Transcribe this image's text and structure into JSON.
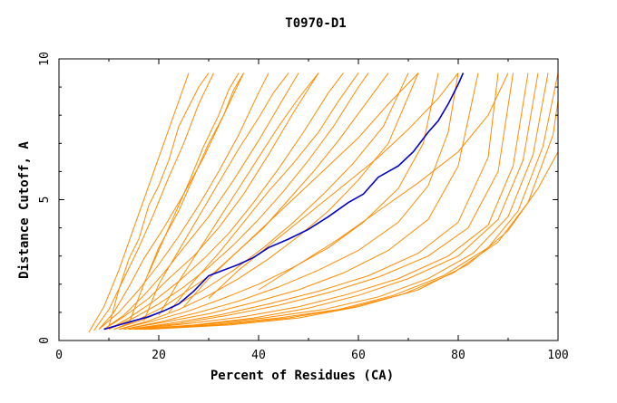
{
  "chart_data": {
    "type": "line",
    "title": "T0970-D1",
    "xlabel": "Percent of Residues (CA)",
    "ylabel": "Distance Cutoff, A",
    "xlim": [
      0,
      100
    ],
    "ylim": [
      0,
      10
    ],
    "x_ticks": [
      "0",
      "20",
      "40",
      "60",
      "80",
      "100"
    ],
    "y_ticks": [
      "0",
      "5",
      "10"
    ],
    "grid": false,
    "colors": {
      "highlight": "#0000cc",
      "others": "#ff8c00"
    },
    "highlight_series": {
      "name": "",
      "x": [
        9,
        12,
        15,
        18,
        21,
        24,
        27,
        30,
        33,
        36,
        39,
        42,
        46,
        50,
        54,
        58,
        61,
        64,
        68,
        71,
        74,
        76,
        78,
        80,
        81
      ],
      "y": [
        0.4,
        0.55,
        0.7,
        0.85,
        1.05,
        1.3,
        1.75,
        2.3,
        2.5,
        2.7,
        2.95,
        3.3,
        3.6,
        3.95,
        4.4,
        4.9,
        5.2,
        5.8,
        6.2,
        6.7,
        7.4,
        7.8,
        8.4,
        9.1,
        9.5
      ]
    },
    "orange_series_approx": [
      {
        "x": [
          6,
          9,
          12,
          15,
          18,
          22,
          25,
          26
        ],
        "y": [
          0.3,
          1.2,
          2.5,
          4.0,
          5.5,
          7.5,
          9.0,
          9.5
        ]
      },
      {
        "x": [
          7,
          10,
          13,
          16,
          19,
          22,
          25,
          28,
          31
        ],
        "y": [
          0.35,
          1.1,
          2.2,
          3.3,
          4.5,
          5.8,
          7.0,
          8.4,
          9.5
        ]
      },
      {
        "x": [
          8,
          11,
          14,
          17,
          21,
          25,
          29,
          33,
          37
        ],
        "y": [
          0.4,
          1.0,
          1.9,
          2.9,
          4.0,
          5.2,
          6.5,
          8.0,
          9.5
        ]
      },
      {
        "x": [
          8,
          12,
          16,
          20,
          24,
          28,
          32,
          36,
          40,
          42
        ],
        "y": [
          0.4,
          1.0,
          1.8,
          2.7,
          3.7,
          4.8,
          6.0,
          7.3,
          8.8,
          9.5
        ]
      },
      {
        "x": [
          9,
          13,
          17,
          21,
          25,
          30,
          35,
          40,
          45,
          48
        ],
        "y": [
          0.4,
          0.9,
          1.6,
          2.4,
          3.3,
          4.4,
          5.7,
          7.1,
          8.6,
          9.5
        ]
      },
      {
        "x": [
          9,
          13,
          18,
          22,
          27,
          32,
          37,
          42,
          47,
          52
        ],
        "y": [
          0.4,
          0.85,
          1.5,
          2.2,
          3.0,
          4.0,
          5.2,
          6.6,
          8.1,
          9.5
        ]
      },
      {
        "x": [
          10,
          14,
          19,
          24,
          29,
          34,
          39,
          44,
          49,
          54,
          57
        ],
        "y": [
          0.4,
          0.8,
          1.4,
          2.1,
          2.9,
          3.8,
          4.9,
          6.1,
          7.4,
          8.8,
          9.5
        ]
      },
      {
        "x": [
          10,
          15,
          20,
          25,
          30,
          35,
          40,
          45,
          50,
          55,
          60,
          62
        ],
        "y": [
          0.4,
          0.8,
          1.3,
          1.9,
          2.6,
          3.4,
          4.3,
          5.3,
          6.4,
          7.6,
          9.0,
          9.5
        ]
      },
      {
        "x": [
          11,
          16,
          21,
          26,
          31,
          36,
          41,
          46,
          51,
          56,
          61,
          66
        ],
        "y": [
          0.4,
          0.75,
          1.2,
          1.8,
          2.4,
          3.2,
          4.0,
          5.0,
          6.0,
          7.1,
          8.3,
          9.5
        ]
      },
      {
        "x": [
          11,
          17,
          23,
          29,
          35,
          41,
          47,
          53,
          59,
          65,
          70
        ],
        "y": [
          0.4,
          0.75,
          1.2,
          1.8,
          2.5,
          3.3,
          4.2,
          5.2,
          6.3,
          7.6,
          9.5
        ]
      },
      {
        "x": [
          12,
          18,
          24,
          30,
          36,
          42,
          48,
          54,
          60,
          66,
          72
        ],
        "y": [
          0.4,
          0.7,
          1.1,
          1.6,
          2.2,
          2.9,
          3.7,
          4.6,
          5.7,
          7.0,
          9.5
        ]
      },
      {
        "x": [
          12,
          19,
          26,
          33,
          40,
          47,
          54,
          61,
          68,
          73,
          76
        ],
        "y": [
          0.4,
          0.7,
          1.05,
          1.5,
          2.0,
          2.6,
          3.3,
          4.2,
          5.4,
          7.0,
          9.5
        ]
      },
      {
        "x": [
          13,
          20,
          28,
          36,
          44,
          52,
          60,
          68,
          74,
          78,
          80
        ],
        "y": [
          0.4,
          0.65,
          1.0,
          1.4,
          1.9,
          2.5,
          3.2,
          4.2,
          5.5,
          7.4,
          9.5
        ]
      },
      {
        "x": [
          13,
          21,
          30,
          39,
          48,
          57,
          66,
          74,
          80,
          84
        ],
        "y": [
          0.4,
          0.65,
          0.95,
          1.35,
          1.8,
          2.4,
          3.2,
          4.3,
          6.2,
          9.5
        ]
      },
      {
        "x": [
          14,
          22,
          32,
          42,
          52,
          62,
          72,
          80,
          86,
          88
        ],
        "y": [
          0.4,
          0.6,
          0.9,
          1.3,
          1.75,
          2.3,
          3.1,
          4.2,
          6.5,
          9.5
        ]
      },
      {
        "x": [
          14,
          24,
          34,
          44,
          54,
          64,
          74,
          82,
          88,
          91
        ],
        "y": [
          0.4,
          0.6,
          0.9,
          1.25,
          1.7,
          2.25,
          3.0,
          4.0,
          6.0,
          9.5
        ]
      },
      {
        "x": [
          15,
          26,
          37,
          48,
          58,
          68,
          78,
          86,
          91,
          94
        ],
        "y": [
          0.4,
          0.6,
          0.85,
          1.2,
          1.65,
          2.2,
          3.0,
          4.1,
          6.2,
          9.5
        ]
      },
      {
        "x": [
          15,
          27,
          39,
          50,
          60,
          70,
          80,
          88,
          93,
          96
        ],
        "y": [
          0.4,
          0.55,
          0.8,
          1.15,
          1.6,
          2.2,
          3.0,
          4.3,
          6.4,
          9.5
        ]
      },
      {
        "x": [
          16,
          28,
          41,
          53,
          64,
          74,
          83,
          90,
          95,
          98
        ],
        "y": [
          0.4,
          0.55,
          0.8,
          1.1,
          1.55,
          2.2,
          3.1,
          4.4,
          6.6,
          9.5
        ]
      },
      {
        "x": [
          16,
          30,
          44,
          56,
          67,
          77,
          86,
          92,
          97,
          100
        ],
        "y": [
          0.4,
          0.55,
          0.8,
          1.1,
          1.6,
          2.3,
          3.3,
          4.6,
          6.9,
          9.5
        ]
      },
      {
        "x": [
          17,
          32,
          46,
          58,
          69,
          79,
          88,
          94,
          99,
          100
        ],
        "y": [
          0.4,
          0.55,
          0.8,
          1.15,
          1.65,
          2.4,
          3.5,
          4.9,
          7.3,
          8.5
        ]
      },
      {
        "x": [
          18,
          34,
          48,
          60,
          72,
          82,
          90,
          96,
          100
        ],
        "y": [
          0.4,
          0.55,
          0.8,
          1.2,
          1.8,
          2.7,
          3.9,
          5.4,
          6.7
        ]
      },
      {
        "x": [
          10,
          12,
          14,
          16,
          18,
          20,
          22,
          24,
          26,
          28,
          30
        ],
        "y": [
          0.5,
          1.8,
          2.9,
          3.6,
          4.8,
          5.5,
          6.4,
          7.6,
          8.3,
          9.0,
          9.5
        ]
      },
      {
        "x": [
          14,
          17,
          20,
          24,
          27,
          30,
          33,
          35,
          37
        ],
        "y": [
          0.6,
          2.0,
          3.3,
          4.6,
          5.8,
          7.0,
          8.0,
          8.9,
          9.5
        ]
      },
      {
        "x": [
          17,
          20,
          24,
          28,
          32,
          36,
          40,
          43,
          46
        ],
        "y": [
          0.7,
          2.0,
          3.2,
          4.4,
          5.6,
          6.8,
          7.9,
          8.8,
          9.5
        ]
      },
      {
        "x": [
          20,
          24,
          28,
          32,
          36,
          40,
          44,
          48,
          52
        ],
        "y": [
          0.9,
          2.1,
          3.2,
          4.3,
          5.4,
          6.5,
          7.6,
          8.6,
          9.5
        ]
      },
      {
        "x": [
          22,
          27,
          32,
          37,
          42,
          47,
          52,
          56,
          60
        ],
        "y": [
          1.0,
          2.1,
          3.1,
          4.2,
          5.3,
          6.3,
          7.4,
          8.5,
          9.5
        ]
      },
      {
        "x": [
          25,
          30,
          36,
          42,
          48,
          54,
          60,
          66,
          72
        ],
        "y": [
          1.2,
          2.2,
          3.2,
          4.2,
          5.2,
          6.2,
          7.2,
          8.4,
          9.5
        ]
      },
      {
        "x": [
          18,
          22,
          26,
          29,
          32,
          34,
          36
        ],
        "y": [
          2.4,
          4.0,
          5.6,
          6.9,
          8.0,
          8.9,
          9.5
        ]
      },
      {
        "x": [
          30,
          36,
          43,
          50,
          57,
          64,
          70,
          76,
          80
        ],
        "y": [
          1.5,
          2.5,
          3.5,
          4.5,
          5.5,
          6.5,
          7.5,
          8.6,
          9.5
        ]
      },
      {
        "x": [
          40,
          48,
          56,
          64,
          72,
          80,
          86,
          90
        ],
        "y": [
          1.8,
          2.7,
          3.6,
          4.6,
          5.6,
          6.7,
          8.0,
          9.5
        ]
      }
    ]
  }
}
